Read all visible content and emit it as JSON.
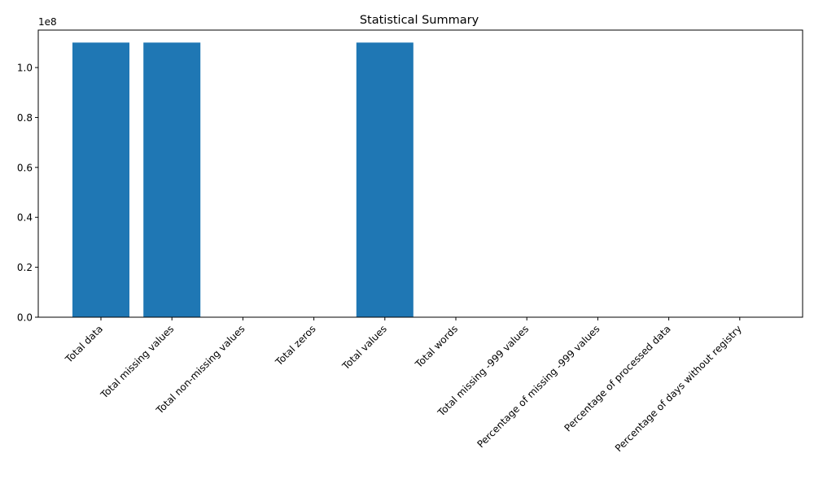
{
  "chart_data": {
    "type": "bar",
    "title": "Statistical Summary",
    "xlabel": "",
    "ylabel": "",
    "y_scale_label": "1e8",
    "ylim": [
      0,
      115000000
    ],
    "yticks": [
      0,
      20000000,
      40000000,
      60000000,
      80000000,
      100000000
    ],
    "ytick_labels": [
      "0.0",
      "0.2",
      "0.4",
      "0.6",
      "0.8",
      "1.0"
    ],
    "categories": [
      "Total data",
      "Total missing values",
      "Total non-missing values",
      "Total zeros",
      "Total values",
      "Total words",
      "Total missing -999 values",
      "Percentage of missing -999 values",
      "Percentage of processed data",
      "Percentage of days without registry"
    ],
    "values": [
      110000000,
      110000000,
      0,
      0,
      110000000,
      0,
      0,
      0,
      0,
      0
    ],
    "bar_color": "#1f77b4",
    "grid": false,
    "legend": "none"
  }
}
